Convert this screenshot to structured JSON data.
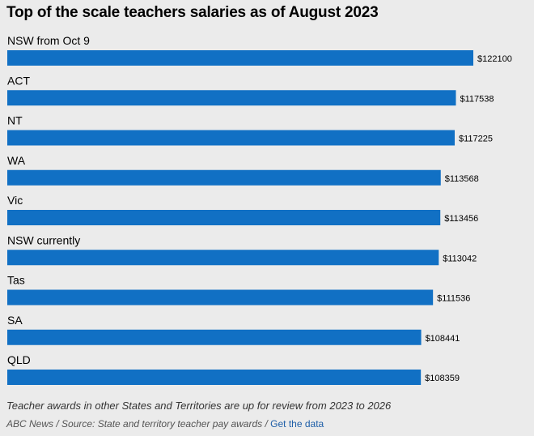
{
  "chart_data": {
    "type": "bar",
    "orientation": "horizontal",
    "title": "Top of the scale teachers salaries as of August 2023",
    "categories": [
      "NSW from Oct 9",
      "ACT",
      "NT",
      "WA",
      "Vic",
      "NSW currently",
      "Tas",
      "SA",
      "QLD"
    ],
    "values": [
      122100,
      117538,
      117225,
      113568,
      113456,
      113042,
      111536,
      108441,
      108359
    ],
    "value_labels": [
      "$122100",
      "$117538",
      "$117225",
      "$113568",
      "$113456",
      "$113042",
      "$111536",
      "$108441",
      "$108359"
    ],
    "bar_color": "#1170c4",
    "grid": false,
    "legend": "none"
  },
  "footer": {
    "note": "Teacher awards in other States and Territories are up for review from 2023 to 2026",
    "source": "ABC News / Source: State and territory teacher pay awards /",
    "link": "Get the data"
  }
}
